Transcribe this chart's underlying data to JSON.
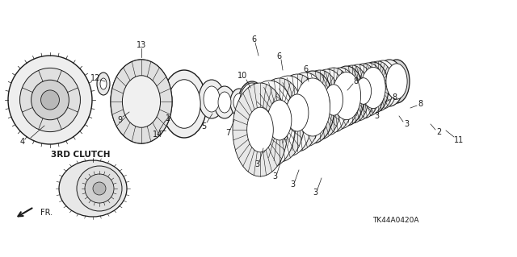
{
  "bg_color": "#ffffff",
  "line_color": "#1a1a1a",
  "text_color": "#1a1a1a",
  "diagram_code": "TK44A0420A",
  "clutch_label": "3RD CLUTCH",
  "figsize": [
    6.4,
    3.19
  ],
  "dpi": 100
}
